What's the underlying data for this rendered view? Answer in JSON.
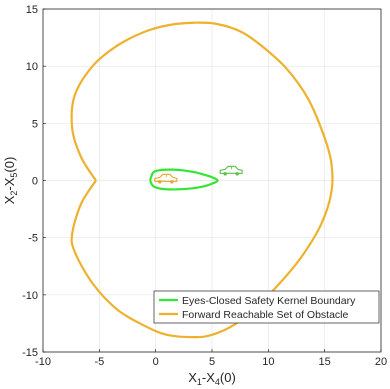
{
  "chart_data": {
    "type": "line",
    "xlabel": "X1-X4(0)",
    "xlabel_parts": {
      "a": "X",
      "a_sub": "1",
      "mid": "-X",
      "b_sub": "4",
      "tail": "(0)"
    },
    "ylabel": "X2-X5(0)",
    "ylabel_parts": {
      "a": "X",
      "a_sub": "2",
      "mid": "-X",
      "b_sub": "5",
      "tail": "(0)"
    },
    "xlim": [
      -10,
      20
    ],
    "ylim": [
      -15,
      15
    ],
    "xticks": [
      -10,
      -5,
      0,
      5,
      10,
      15,
      20
    ],
    "yticks": [
      -15,
      -10,
      -5,
      0,
      5,
      10,
      15
    ],
    "xtick_labels": [
      "-10",
      "-5",
      "0",
      "5",
      "10",
      "15",
      "20"
    ],
    "ytick_labels": [
      "-15",
      "-10",
      "-5",
      "0",
      "5",
      "10",
      "15"
    ],
    "grid": true,
    "legend_position": "bottom-right",
    "series": [
      {
        "name": "Eyes-Closed Safety Kernel Boundary",
        "color": "#33e633",
        "x": [
          -0.5,
          -0.2,
          0.5,
          1.5,
          2.5,
          3.5,
          4.5,
          5.2,
          5.5,
          5.2,
          4.5,
          3.5,
          2.5,
          1.5,
          0.5,
          -0.2,
          -0.5
        ],
        "y": [
          0.0,
          0.72,
          0.92,
          0.95,
          0.88,
          0.72,
          0.45,
          0.2,
          0.0,
          -0.2,
          -0.45,
          -0.65,
          -0.75,
          -0.78,
          -0.72,
          -0.5,
          0.0
        ]
      },
      {
        "name": "Forward Reachable Set of Obstacle",
        "color": "#edb12e",
        "x": [
          -5.3,
          -6.6,
          -7.4,
          -7.2,
          -5.6,
          -3.4,
          -1.0,
          1.2,
          3.4,
          5.4,
          7.6,
          9.5,
          11.6,
          13.5,
          14.9,
          15.6,
          15.6,
          14.7,
          13.0,
          11.0,
          9.0,
          7.0,
          5.0,
          3.4,
          1.0,
          -1.0,
          -3.4,
          -5.6,
          -7.2,
          -7.4,
          -6.6,
          -5.3
        ],
        "y": [
          0.0,
          2.0,
          4.5,
          7.4,
          10.0,
          11.8,
          13.0,
          13.6,
          13.8,
          13.7,
          13.0,
          11.7,
          9.8,
          7.2,
          4.0,
          1.5,
          -1.0,
          -3.8,
          -6.6,
          -9.0,
          -11.0,
          -12.6,
          -13.5,
          -13.7,
          -13.5,
          -12.7,
          -11.3,
          -9.0,
          -6.2,
          -4.6,
          -2.0,
          0.0
        ]
      }
    ],
    "icons": [
      {
        "name": "ego-car-icon",
        "x": 0.9,
        "y": 0.1,
        "color": "#e8a825"
      },
      {
        "name": "obstacle-car-icon",
        "x": 6.7,
        "y": 0.8,
        "color": "#5cbf4a"
      }
    ]
  }
}
